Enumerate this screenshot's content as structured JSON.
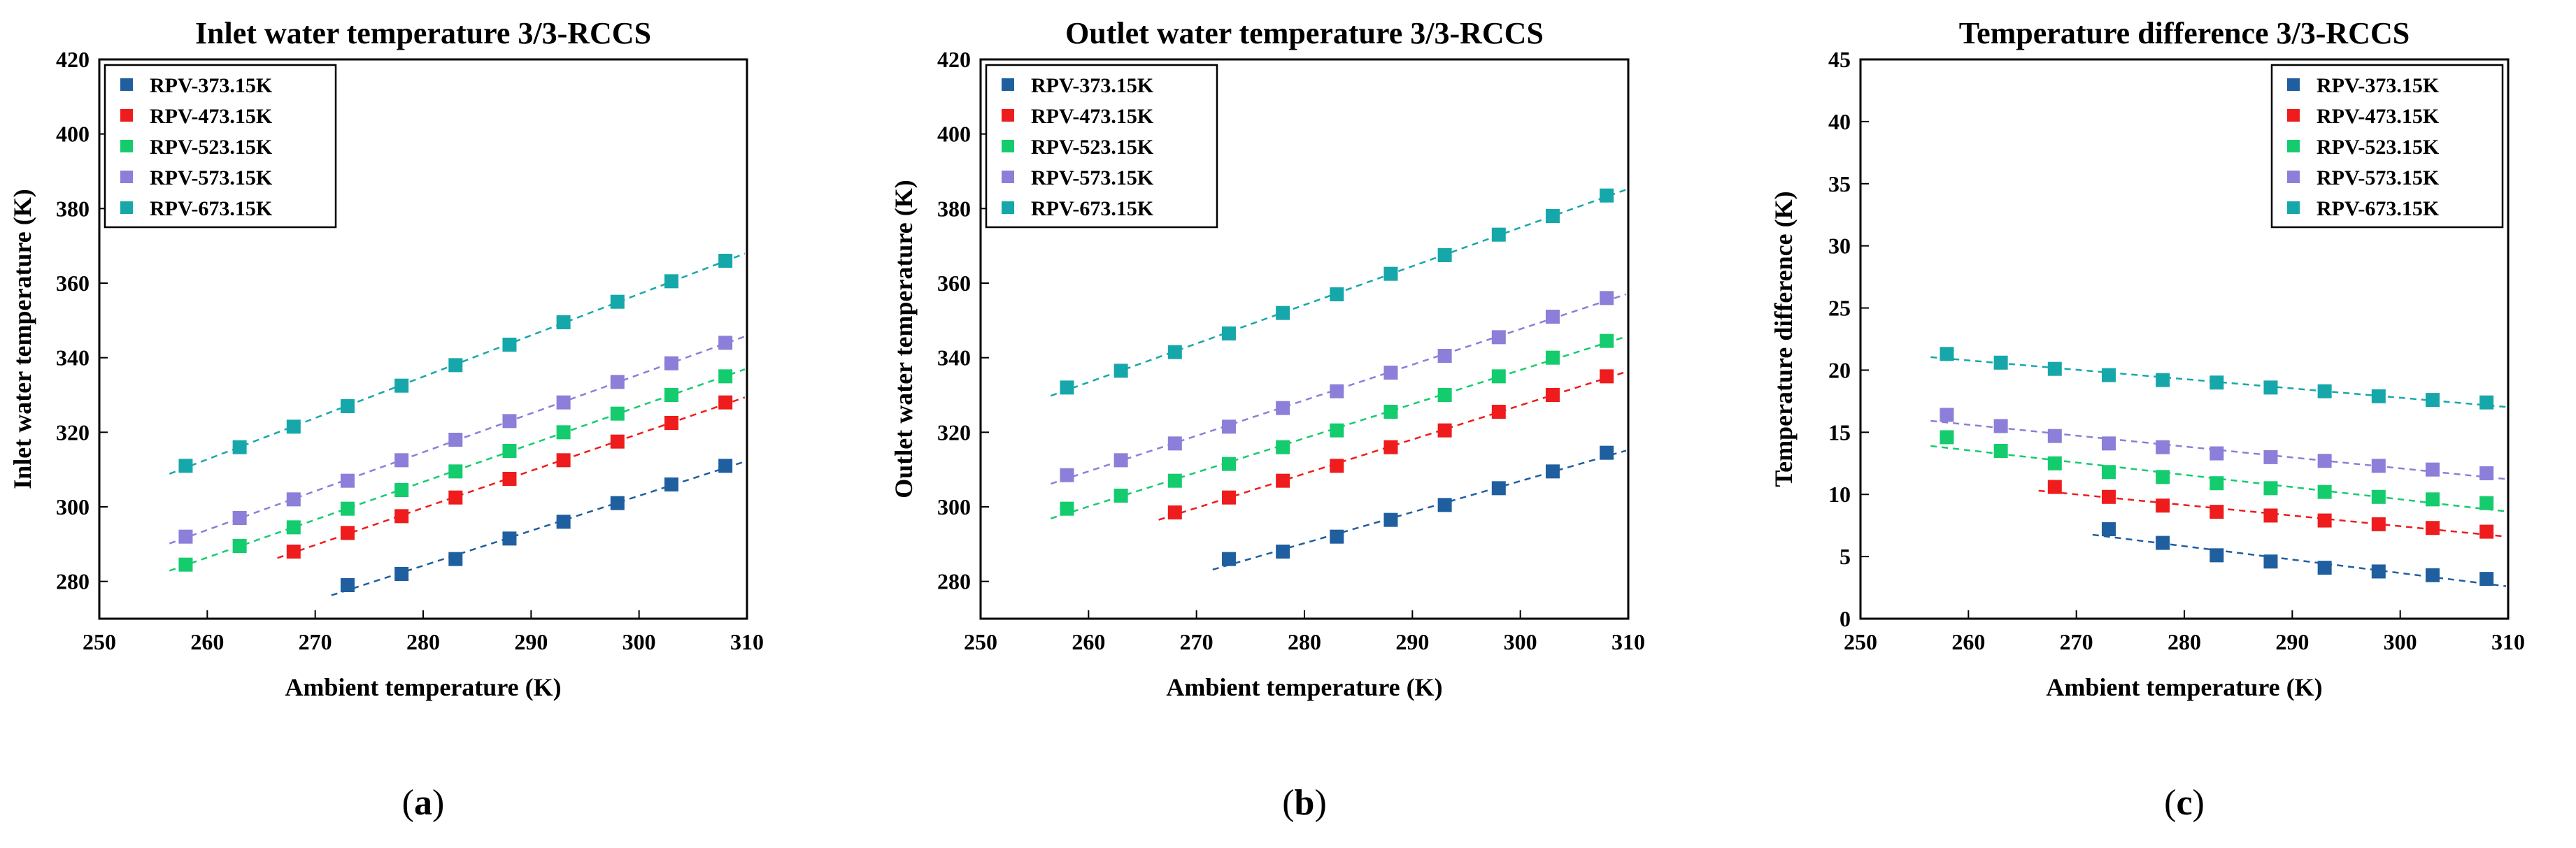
{
  "colors": {
    "RPV-373.15K": "#1f5f9f",
    "RPV-473.15K": "#ee1c1c",
    "RPV-523.15K": "#14cc6e",
    "RPV-573.15K": "#8b7fd9",
    "RPV-673.15K": "#16a7aa"
  },
  "chart_data": [
    {
      "type": "scatter",
      "caption": "a",
      "title": "Inlet water temperature 3/3-RCCS",
      "xlabel": "Ambient temperature (K)",
      "ylabel": "Inlet water temperature (K)",
      "xlim": [
        250,
        310
      ],
      "ylim": [
        270,
        420
      ],
      "xticks": [
        250,
        260,
        270,
        280,
        290,
        300,
        310
      ],
      "yticks": [
        280,
        300,
        320,
        340,
        360,
        380,
        400,
        420
      ],
      "legend_position": "top-left",
      "series": [
        {
          "name": "RPV-373.15K",
          "x": [
            273,
            278,
            283,
            288,
            293,
            298,
            303,
            308
          ],
          "y": [
            279,
            282,
            286,
            291.5,
            296,
            301,
            306,
            311
          ]
        },
        {
          "name": "RPV-473.15K",
          "x": [
            268,
            273,
            278,
            283,
            288,
            293,
            298,
            303,
            308
          ],
          "y": [
            288,
            293,
            297.5,
            302.5,
            307.5,
            312.5,
            317.5,
            322.5,
            328
          ]
        },
        {
          "name": "RPV-523.15K",
          "x": [
            258,
            263,
            268,
            273,
            278,
            283,
            288,
            293,
            298,
            303,
            308
          ],
          "y": [
            284.5,
            289.5,
            294.5,
            299.5,
            304.5,
            309.5,
            315,
            320,
            325,
            330,
            335
          ]
        },
        {
          "name": "RPV-573.15K",
          "x": [
            258,
            263,
            268,
            273,
            278,
            283,
            288,
            293,
            298,
            303,
            308
          ],
          "y": [
            292,
            297,
            302,
            307,
            312.5,
            318,
            323,
            328,
            333.5,
            338.5,
            344
          ]
        },
        {
          "name": "RPV-673.15K",
          "x": [
            258,
            263,
            268,
            273,
            278,
            283,
            288,
            293,
            298,
            303,
            308
          ],
          "y": [
            311,
            316,
            321.5,
            327,
            332.5,
            338,
            343.5,
            349.5,
            355,
            360.5,
            366
          ]
        }
      ]
    },
    {
      "type": "scatter",
      "caption": "b",
      "title": "Outlet water temperature 3/3-RCCS",
      "xlabel": "Ambient temperature (K)",
      "ylabel": "Outlet water temperature (K)",
      "xlim": [
        250,
        310
      ],
      "ylim": [
        270,
        420
      ],
      "xticks": [
        250,
        260,
        270,
        280,
        290,
        300,
        310
      ],
      "yticks": [
        280,
        300,
        320,
        340,
        360,
        380,
        400,
        420
      ],
      "legend_position": "top-left",
      "series": [
        {
          "name": "RPV-373.15K",
          "x": [
            273,
            278,
            283,
            288,
            293,
            298,
            303,
            308
          ],
          "y": [
            286,
            288,
            292,
            296.5,
            300.5,
            305,
            309.5,
            314.5
          ]
        },
        {
          "name": "RPV-473.15K",
          "x": [
            268,
            273,
            278,
            283,
            288,
            293,
            298,
            303,
            308
          ],
          "y": [
            298.5,
            302.5,
            307,
            311,
            316,
            320.5,
            325.5,
            330,
            335
          ]
        },
        {
          "name": "RPV-523.15K",
          "x": [
            258,
            263,
            268,
            273,
            278,
            283,
            288,
            293,
            298,
            303,
            308
          ],
          "y": [
            299.5,
            303,
            307,
            311.5,
            316,
            320.5,
            325.5,
            330,
            335,
            340,
            344.5
          ]
        },
        {
          "name": "RPV-573.15K",
          "x": [
            258,
            263,
            268,
            273,
            278,
            283,
            288,
            293,
            298,
            303,
            308
          ],
          "y": [
            308.5,
            312.5,
            317,
            321.5,
            326.5,
            331,
            336,
            340.5,
            345.5,
            351,
            356
          ]
        },
        {
          "name": "RPV-673.15K",
          "x": [
            258,
            263,
            268,
            273,
            278,
            283,
            288,
            293,
            298,
            303,
            308
          ],
          "y": [
            332,
            336.5,
            341.5,
            346.5,
            352,
            357,
            362.5,
            367.5,
            373,
            378,
            383.5
          ]
        }
      ]
    },
    {
      "type": "scatter",
      "caption": "c",
      "title": "Temperature difference 3/3-RCCS",
      "xlabel": "Ambient temperature (K)",
      "ylabel": "Temperature difference (K)",
      "xlim": [
        250,
        310
      ],
      "ylim": [
        0,
        45
      ],
      "xticks": [
        250,
        260,
        270,
        280,
        290,
        300,
        310
      ],
      "yticks": [
        0,
        5,
        10,
        15,
        20,
        25,
        30,
        35,
        40,
        45
      ],
      "legend_position": "top-right",
      "series": [
        {
          "name": "RPV-373.15K",
          "x": [
            273,
            278,
            283,
            288,
            293,
            298,
            303,
            308
          ],
          "y": [
            7.2,
            6.1,
            5.1,
            4.6,
            4.1,
            3.8,
            3.5,
            3.2
          ]
        },
        {
          "name": "RPV-473.15K",
          "x": [
            268,
            273,
            278,
            283,
            288,
            293,
            298,
            303,
            308
          ],
          "y": [
            10.6,
            9.8,
            9.1,
            8.6,
            8.3,
            7.9,
            7.6,
            7.3,
            7.0
          ]
        },
        {
          "name": "RPV-523.15K",
          "x": [
            258,
            263,
            268,
            273,
            278,
            283,
            288,
            293,
            298,
            303,
            308
          ],
          "y": [
            14.6,
            13.5,
            12.5,
            11.8,
            11.4,
            10.9,
            10.5,
            10.2,
            9.8,
            9.6,
            9.3
          ]
        },
        {
          "name": "RPV-573.15K",
          "x": [
            258,
            263,
            268,
            273,
            278,
            283,
            288,
            293,
            298,
            303,
            308
          ],
          "y": [
            16.4,
            15.5,
            14.7,
            14.1,
            13.8,
            13.3,
            13.0,
            12.7,
            12.3,
            12.0,
            11.7
          ]
        },
        {
          "name": "RPV-673.15K",
          "x": [
            258,
            263,
            268,
            273,
            278,
            283,
            288,
            293,
            298,
            303,
            308
          ],
          "y": [
            21.3,
            20.6,
            20.1,
            19.6,
            19.2,
            19.0,
            18.6,
            18.3,
            17.9,
            17.6,
            17.4
          ]
        }
      ]
    }
  ]
}
